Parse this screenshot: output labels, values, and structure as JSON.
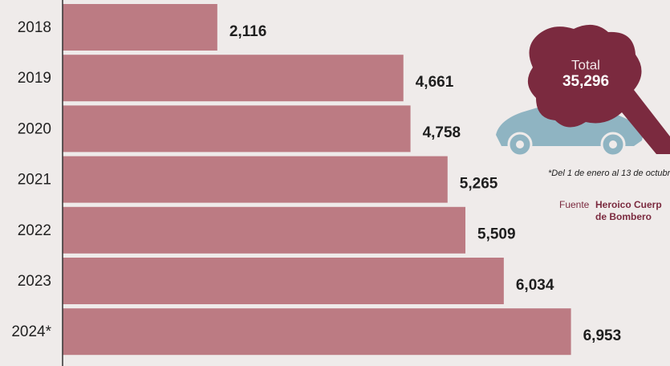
{
  "chart_data": {
    "type": "bar",
    "orientation": "horizontal",
    "categories": [
      "2018",
      "2019",
      "2020",
      "2021",
      "2022",
      "2023",
      "2024*"
    ],
    "values": [
      2116,
      4661,
      4758,
      5265,
      5509,
      6034,
      6953
    ],
    "value_labels": [
      "2,116",
      "4,661",
      "4,758",
      "5,265",
      "5,509",
      "6,034",
      "6,953"
    ],
    "color": "#bc7b83",
    "xlim": [
      0,
      7100
    ],
    "total_label": "Total",
    "total": "35,296",
    "note": "*Del 1 de enero al 13 de octubr",
    "source_label": "Fuente",
    "source": [
      "Heroico Cuerp",
      "de Bombero"
    ]
  }
}
